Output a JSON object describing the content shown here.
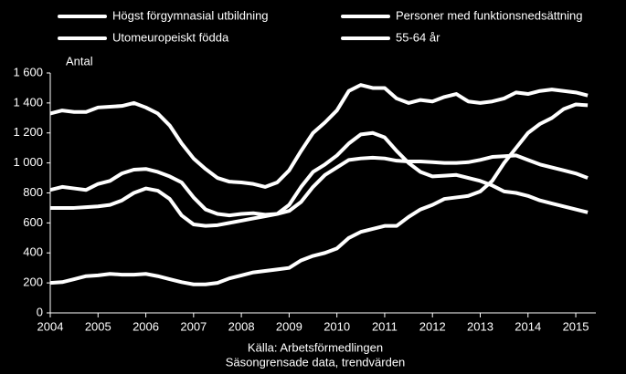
{
  "chart_data": {
    "type": "line",
    "y_label": "Antal",
    "source_lines": [
      "Källa: Arbetsförmedlingen",
      "Säsongrensade data, trendvärden"
    ],
    "x": [
      2004,
      2004.25,
      2004.5,
      2004.75,
      2005,
      2005.25,
      2005.5,
      2005.75,
      2006,
      2006.25,
      2006.5,
      2006.75,
      2007,
      2007.25,
      2007.5,
      2007.75,
      2008,
      2008.25,
      2008.5,
      2008.75,
      2009,
      2009.25,
      2009.5,
      2009.75,
      2010,
      2010.25,
      2010.5,
      2010.75,
      2011,
      2011.25,
      2011.5,
      2011.75,
      2012,
      2012.25,
      2012.5,
      2012.75,
      2013,
      2013.25,
      2013.5,
      2013.75,
      2014,
      2014.25,
      2014.5,
      2014.75,
      2015,
      2015.25
    ],
    "series": [
      {
        "name": "Högst förgymnasial utbildning",
        "color": "#ffffff",
        "values": [
          1330,
          1350,
          1340,
          1340,
          1370,
          1375,
          1380,
          1400,
          1370,
          1330,
          1250,
          1130,
          1030,
          960,
          900,
          875,
          870,
          860,
          840,
          870,
          950,
          1080,
          1200,
          1270,
          1350,
          1480,
          1520,
          1500,
          1500,
          1430,
          1400,
          1420,
          1410,
          1440,
          1460,
          1410,
          1400,
          1410,
          1430,
          1470,
          1460,
          1480,
          1490,
          1480,
          1470,
          1450
        ]
      },
      {
        "name": "Personer med funktionsnedsättning",
        "color": "#ffffff",
        "values": [
          700,
          700,
          700,
          705,
          710,
          720,
          750,
          800,
          830,
          815,
          760,
          650,
          590,
          580,
          585,
          600,
          615,
          630,
          645,
          660,
          680,
          740,
          840,
          920,
          970,
          1020,
          1030,
          1035,
          1030,
          1015,
          1010,
          1010,
          1005,
          1000,
          1000,
          1005,
          1020,
          1040,
          1045,
          1050,
          1020,
          990,
          970,
          950,
          930,
          900
        ]
      },
      {
        "name": "Utomeuropeiskt födda",
        "color": "#ffffff",
        "values": [
          820,
          840,
          830,
          820,
          860,
          880,
          930,
          955,
          960,
          940,
          910,
          870,
          770,
          690,
          660,
          650,
          660,
          665,
          655,
          660,
          720,
          840,
          940,
          990,
          1050,
          1130,
          1190,
          1200,
          1170,
          1080,
          1000,
          940,
          910,
          915,
          920,
          900,
          880,
          850,
          810,
          800,
          780,
          750,
          730,
          710,
          690,
          670
        ]
      },
      {
        "name": "55-64 år",
        "color": "#ffffff",
        "values": [
          200,
          205,
          225,
          245,
          250,
          260,
          255,
          255,
          260,
          245,
          225,
          205,
          190,
          190,
          200,
          230,
          250,
          270,
          280,
          290,
          300,
          350,
          380,
          400,
          430,
          500,
          540,
          560,
          580,
          580,
          640,
          690,
          720,
          760,
          770,
          780,
          810,
          880,
          1000,
          1100,
          1200,
          1260,
          1300,
          1360,
          1390,
          1385
        ]
      }
    ],
    "xlim": [
      2004,
      2015.42
    ],
    "xticks": [
      2004,
      2005,
      2006,
      2007,
      2008,
      2009,
      2010,
      2011,
      2012,
      2013,
      2014,
      2015
    ],
    "ylim": [
      0,
      1600
    ],
    "yticks": [
      0,
      200,
      400,
      600,
      800,
      {
        "value": 1000,
        "label": "1 000"
      },
      {
        "value": 1200,
        "label": "1 200"
      },
      {
        "value": 1400,
        "label": "1 400"
      },
      {
        "value": 1600,
        "label": "1 600"
      }
    ],
    "grid": false
  }
}
